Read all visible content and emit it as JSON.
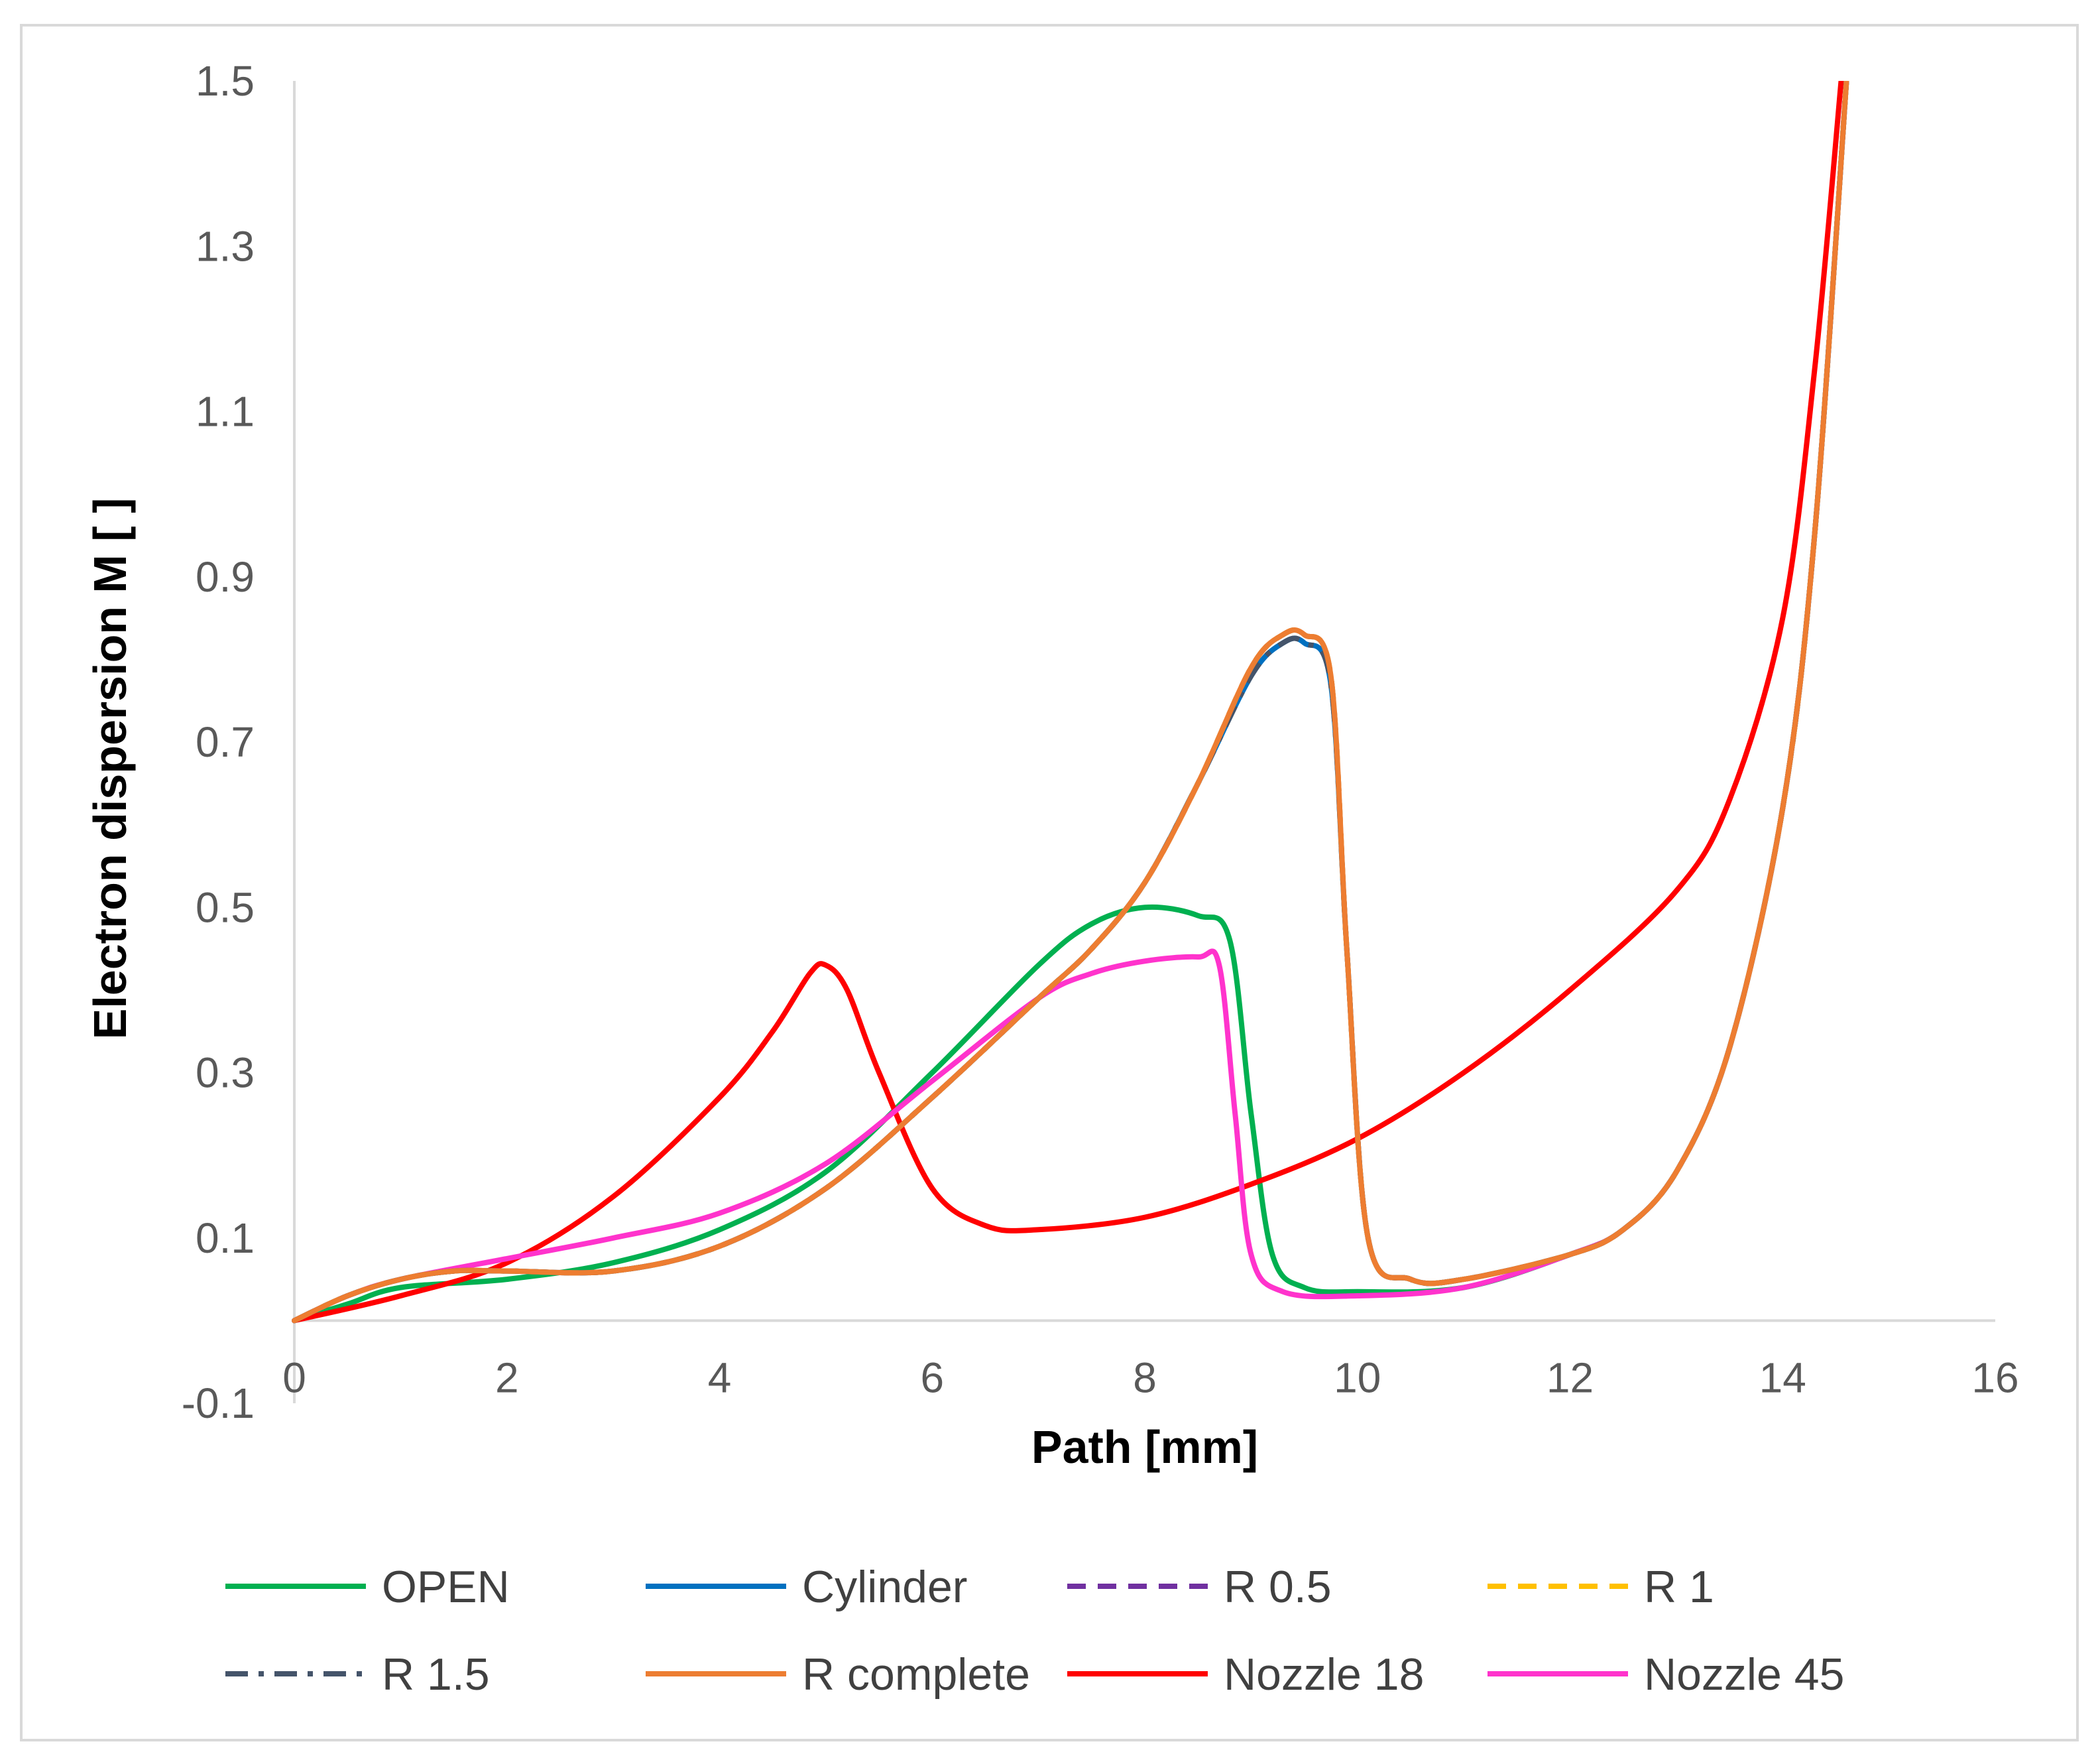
{
  "chart_data": {
    "type": "line",
    "title": "",
    "xlabel": "Path [mm]",
    "ylabel": "Electron dispersion M [ ]",
    "xlim": [
      0,
      16
    ],
    "ylim": [
      -0.1,
      1.5
    ],
    "x_ticks": [
      0,
      2,
      4,
      6,
      8,
      10,
      12,
      14,
      16
    ],
    "x_tick_labels": [
      "0",
      "2",
      "4",
      "6",
      "8",
      "10",
      "12",
      "14",
      "16"
    ],
    "y_ticks": [
      -0.1,
      0.1,
      0.3,
      0.5,
      0.7,
      0.9,
      1.1,
      1.3,
      1.5
    ],
    "y_tick_labels": [
      "-0.1",
      "0.1",
      "0.3",
      "0.5",
      "0.7",
      "0.9",
      "1.1",
      "1.3",
      "1.5"
    ],
    "grid": false,
    "legend_position": "bottom",
    "series": [
      {
        "name": "OPEN",
        "color": "#00B050",
        "dash": "solid",
        "points": [
          [
            0,
            0
          ],
          [
            0.5,
            0.02
          ],
          [
            1,
            0.04
          ],
          [
            2,
            0.05
          ],
          [
            3,
            0.07
          ],
          [
            4,
            0.11
          ],
          [
            5,
            0.18
          ],
          [
            6,
            0.3
          ],
          [
            7,
            0.43
          ],
          [
            7.5,
            0.48
          ],
          [
            8,
            0.5
          ],
          [
            8.5,
            0.49
          ],
          [
            8.8,
            0.46
          ],
          [
            9,
            0.25
          ],
          [
            9.2,
            0.08
          ],
          [
            9.5,
            0.04
          ],
          [
            10,
            0.035
          ],
          [
            11,
            0.04
          ],
          [
            12,
            0.08
          ],
          [
            12.5,
            0.11
          ],
          [
            13,
            0.18
          ],
          [
            13.5,
            0.33
          ],
          [
            14,
            0.62
          ],
          [
            14.3,
            0.95
          ],
          [
            14.6,
            1.5
          ]
        ]
      },
      {
        "name": "Cylinder",
        "color": "#0070C0",
        "dash": "solid",
        "points": [
          [
            0,
            0
          ],
          [
            0.5,
            0.03
          ],
          [
            1,
            0.05
          ],
          [
            1.5,
            0.06
          ],
          [
            2,
            0.06
          ],
          [
            3,
            0.06
          ],
          [
            4,
            0.09
          ],
          [
            5,
            0.16
          ],
          [
            6,
            0.27
          ],
          [
            7,
            0.39
          ],
          [
            7.5,
            0.45
          ],
          [
            8,
            0.53
          ],
          [
            8.5,
            0.65
          ],
          [
            9,
            0.78
          ],
          [
            9.3,
            0.82
          ],
          [
            9.5,
            0.82
          ],
          [
            9.75,
            0.77
          ],
          [
            9.9,
            0.45
          ],
          [
            10.1,
            0.1
          ],
          [
            10.5,
            0.05
          ],
          [
            11,
            0.05
          ],
          [
            12,
            0.08
          ],
          [
            12.5,
            0.11
          ],
          [
            13,
            0.18
          ],
          [
            13.5,
            0.33
          ],
          [
            14,
            0.62
          ],
          [
            14.3,
            0.95
          ],
          [
            14.6,
            1.5
          ]
        ]
      },
      {
        "name": "R 0.5",
        "color": "#7030A0",
        "dash": "dash",
        "points": [
          [
            0,
            0
          ],
          [
            0.5,
            0.03
          ],
          [
            1,
            0.05
          ],
          [
            1.5,
            0.06
          ],
          [
            2,
            0.06
          ],
          [
            3,
            0.06
          ],
          [
            4,
            0.09
          ],
          [
            5,
            0.16
          ],
          [
            6,
            0.27
          ],
          [
            7,
            0.39
          ],
          [
            7.5,
            0.45
          ],
          [
            8,
            0.53
          ],
          [
            8.5,
            0.65
          ],
          [
            9,
            0.79
          ],
          [
            9.3,
            0.83
          ],
          [
            9.5,
            0.83
          ],
          [
            9.75,
            0.78
          ],
          [
            9.9,
            0.45
          ],
          [
            10.1,
            0.1
          ],
          [
            10.5,
            0.05
          ],
          [
            11,
            0.05
          ],
          [
            12,
            0.08
          ],
          [
            12.5,
            0.11
          ],
          [
            13,
            0.18
          ],
          [
            13.5,
            0.33
          ],
          [
            14,
            0.62
          ],
          [
            14.3,
            0.95
          ],
          [
            14.6,
            1.5
          ]
        ]
      },
      {
        "name": "R 1",
        "color": "#FFC000",
        "dash": "dash",
        "points": [
          [
            0,
            0
          ],
          [
            0.5,
            0.03
          ],
          [
            1,
            0.05
          ],
          [
            1.5,
            0.06
          ],
          [
            2,
            0.06
          ],
          [
            3,
            0.06
          ],
          [
            4,
            0.09
          ],
          [
            5,
            0.16
          ],
          [
            6,
            0.27
          ],
          [
            7,
            0.39
          ],
          [
            7.5,
            0.45
          ],
          [
            8,
            0.53
          ],
          [
            8.5,
            0.65
          ],
          [
            9,
            0.79
          ],
          [
            9.3,
            0.83
          ],
          [
            9.5,
            0.83
          ],
          [
            9.75,
            0.78
          ],
          [
            9.9,
            0.45
          ],
          [
            10.1,
            0.1
          ],
          [
            10.5,
            0.05
          ],
          [
            11,
            0.05
          ],
          [
            12,
            0.08
          ],
          [
            12.5,
            0.11
          ],
          [
            13,
            0.18
          ],
          [
            13.5,
            0.33
          ],
          [
            14,
            0.62
          ],
          [
            14.3,
            0.95
          ],
          [
            14.6,
            1.5
          ]
        ]
      },
      {
        "name": "R 1.5",
        "color": "#44546A",
        "dash": "dashdot",
        "points": [
          [
            0,
            0
          ],
          [
            0.5,
            0.03
          ],
          [
            1,
            0.05
          ],
          [
            1.5,
            0.06
          ],
          [
            2,
            0.06
          ],
          [
            3,
            0.06
          ],
          [
            4,
            0.09
          ],
          [
            5,
            0.16
          ],
          [
            6,
            0.27
          ],
          [
            7,
            0.39
          ],
          [
            7.5,
            0.45
          ],
          [
            8,
            0.53
          ],
          [
            8.5,
            0.65
          ],
          [
            9,
            0.78
          ],
          [
            9.3,
            0.82
          ],
          [
            9.5,
            0.82
          ],
          [
            9.75,
            0.77
          ],
          [
            9.9,
            0.45
          ],
          [
            10.1,
            0.1
          ],
          [
            10.5,
            0.05
          ],
          [
            11,
            0.05
          ],
          [
            12,
            0.08
          ],
          [
            12.5,
            0.11
          ],
          [
            13,
            0.18
          ],
          [
            13.5,
            0.33
          ],
          [
            14,
            0.62
          ],
          [
            14.3,
            0.95
          ],
          [
            14.6,
            1.5
          ]
        ]
      },
      {
        "name": "R complete",
        "color": "#ED7D31",
        "dash": "solid",
        "points": [
          [
            0,
            0
          ],
          [
            0.5,
            0.03
          ],
          [
            1,
            0.05
          ],
          [
            1.5,
            0.06
          ],
          [
            2,
            0.06
          ],
          [
            3,
            0.06
          ],
          [
            4,
            0.09
          ],
          [
            5,
            0.16
          ],
          [
            6,
            0.27
          ],
          [
            7,
            0.39
          ],
          [
            7.5,
            0.45
          ],
          [
            8,
            0.53
          ],
          [
            8.5,
            0.65
          ],
          [
            9,
            0.79
          ],
          [
            9.3,
            0.83
          ],
          [
            9.5,
            0.83
          ],
          [
            9.75,
            0.78
          ],
          [
            9.9,
            0.45
          ],
          [
            10.1,
            0.1
          ],
          [
            10.5,
            0.05
          ],
          [
            11,
            0.05
          ],
          [
            12,
            0.08
          ],
          [
            12.5,
            0.11
          ],
          [
            13,
            0.18
          ],
          [
            13.5,
            0.33
          ],
          [
            14,
            0.62
          ],
          [
            14.3,
            0.95
          ],
          [
            14.6,
            1.5
          ]
        ]
      },
      {
        "name": "Nozzle 18",
        "color": "#FF0000",
        "dash": "solid",
        "points": [
          [
            0,
            0
          ],
          [
            1,
            0.03
          ],
          [
            2,
            0.07
          ],
          [
            3,
            0.15
          ],
          [
            4,
            0.27
          ],
          [
            4.5,
            0.35
          ],
          [
            4.85,
            0.42
          ],
          [
            5,
            0.43
          ],
          [
            5.2,
            0.4
          ],
          [
            5.5,
            0.3
          ],
          [
            6,
            0.16
          ],
          [
            6.5,
            0.115
          ],
          [
            7,
            0.11
          ],
          [
            8,
            0.125
          ],
          [
            9,
            0.165
          ],
          [
            10,
            0.22
          ],
          [
            11,
            0.3
          ],
          [
            12,
            0.4
          ],
          [
            13,
            0.52
          ],
          [
            13.5,
            0.63
          ],
          [
            14,
            0.85
          ],
          [
            14.3,
            1.15
          ],
          [
            14.55,
            1.5
          ]
        ]
      },
      {
        "name": "Nozzle 45",
        "color": "#FF33CC",
        "dash": "solid",
        "points": [
          [
            0,
            0
          ],
          [
            0.5,
            0.03
          ],
          [
            1,
            0.05
          ],
          [
            2,
            0.075
          ],
          [
            3,
            0.1
          ],
          [
            4,
            0.13
          ],
          [
            5,
            0.19
          ],
          [
            6,
            0.29
          ],
          [
            7,
            0.39
          ],
          [
            7.5,
            0.42
          ],
          [
            8,
            0.435
          ],
          [
            8.5,
            0.44
          ],
          [
            8.7,
            0.43
          ],
          [
            8.85,
            0.25
          ],
          [
            9,
            0.08
          ],
          [
            9.3,
            0.035
          ],
          [
            10,
            0.03
          ],
          [
            11,
            0.04
          ],
          [
            12,
            0.08
          ],
          [
            12.5,
            0.11
          ],
          [
            13,
            0.18
          ],
          [
            13.5,
            0.33
          ],
          [
            14,
            0.62
          ],
          [
            14.3,
            0.95
          ],
          [
            14.6,
            1.5
          ]
        ]
      }
    ]
  }
}
